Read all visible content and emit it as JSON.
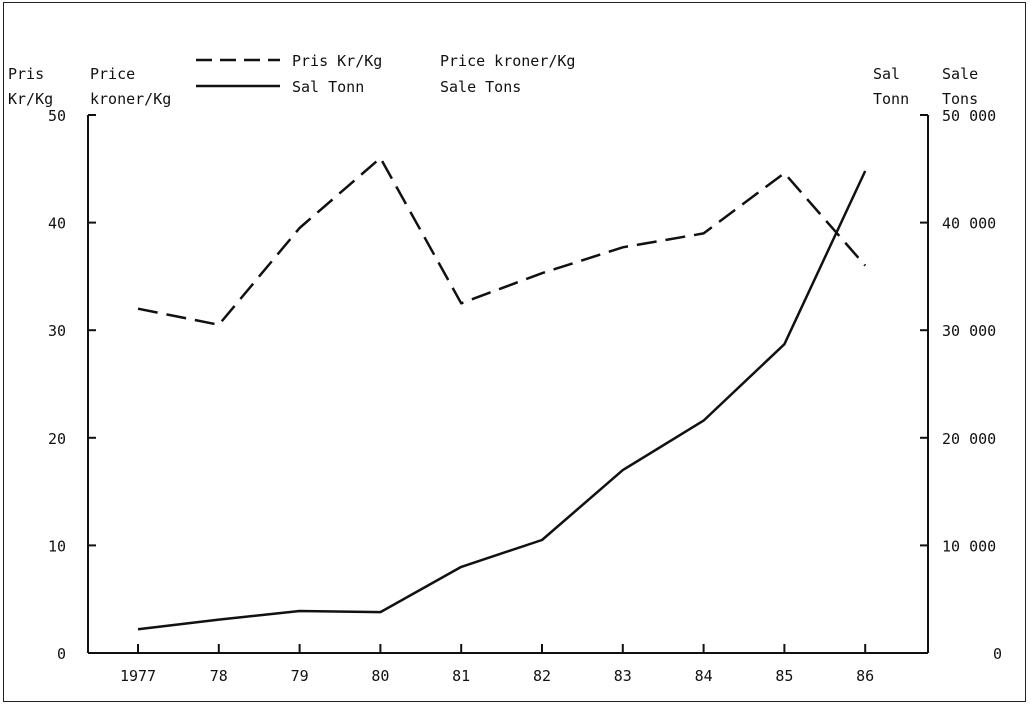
{
  "chart_data": {
    "type": "line",
    "title": "",
    "categories": [
      "1977",
      "78",
      "79",
      "80",
      "81",
      "82",
      "83",
      "84",
      "85",
      "86"
    ],
    "left_axis": {
      "label_no": [
        "Pris",
        "Kr/Kg"
      ],
      "label_en": [
        "Price",
        "kroner/Kg"
      ],
      "ticks": [
        "0",
        "10",
        "20",
        "30",
        "40",
        "50"
      ],
      "ylim": [
        0,
        50
      ]
    },
    "right_axis": {
      "label_no": [
        "Sal",
        "Tonn"
      ],
      "label_en": [
        "Sale",
        "Tons"
      ],
      "ticks": [
        "0",
        "10 000",
        "20 000",
        "30 000",
        "40 000",
        "50 000"
      ],
      "ylim": [
        0,
        50000
      ]
    },
    "series": [
      {
        "name": "Pris Kr/Kg",
        "name_en": "Price kroner/Kg",
        "axis": "left",
        "style": "dashed",
        "values": [
          32,
          30.5,
          39.5,
          46,
          32.5,
          35.3,
          37.7,
          39,
          44.6,
          36
        ]
      },
      {
        "name": "Sal Tonn",
        "name_en": "Sale Tons",
        "axis": "right",
        "style": "solid",
        "values": [
          2200,
          3100,
          3900,
          3800,
          8000,
          10500,
          17000,
          21600,
          28700,
          44800
        ]
      }
    ],
    "legend": "top-center",
    "grid": false,
    "color": "#111111"
  }
}
